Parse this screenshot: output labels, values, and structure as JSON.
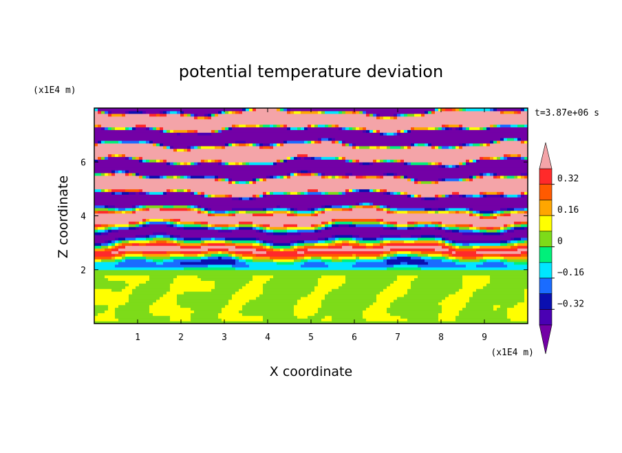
{
  "chart_data": {
    "type": "heatmap",
    "title": "potential temperature deviation",
    "xlabel": "X coordinate",
    "ylabel": "Z coordinate",
    "x_unit": "(x1E4 m)",
    "y_unit": "(x1E4 m)",
    "time_label": "t=3.87e+06 s",
    "xlim": [
      0,
      10
    ],
    "ylim": [
      0,
      8
    ],
    "x_ticks": [
      "1",
      "2",
      "3",
      "4",
      "5",
      "6",
      "7",
      "8",
      "9"
    ],
    "y_ticks": [
      "2",
      "4",
      "6"
    ],
    "colorbar": {
      "tick_labels": [
        "0.32",
        "0.16",
        "0",
        "−0.16",
        "−0.32"
      ],
      "tick_values": [
        0.32,
        0.16,
        0,
        -0.16,
        -0.32
      ],
      "levels": [
        -0.4,
        -0.32,
        -0.24,
        -0.16,
        -0.08,
        0,
        0.08,
        0.16,
        0.24,
        0.32,
        0.4
      ],
      "colors": [
        "#7300a6",
        "#4a00b3",
        "#0a0fb0",
        "#1a6cff",
        "#00e6ff",
        "#00f07a",
        "#7ddb19",
        "#ffff00",
        "#ffa600",
        "#ff5a00",
        "#ff2a2a",
        "#f4a4a8"
      ],
      "extend": "both"
    },
    "pattern": {
      "mixed_layer_top": 2.0,
      "mixed_layer_value_range": [
        0,
        0.08
      ],
      "upper_layer_alternating_bands": [
        "pink (> 0.4)",
        "purple (< -0.4)"
      ],
      "transition_zone": [
        2.0,
        4.5
      ]
    }
  }
}
